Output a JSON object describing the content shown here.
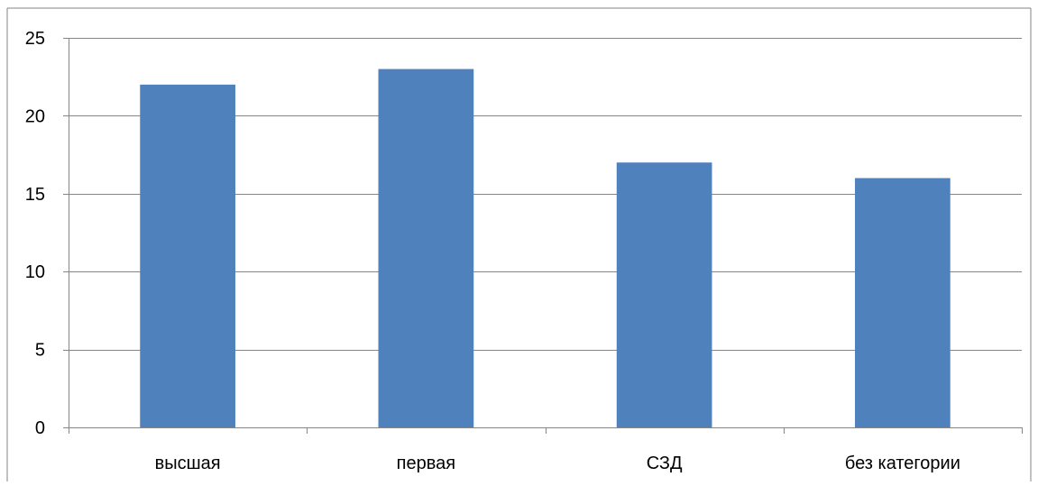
{
  "chart_data": {
    "type": "bar",
    "title": "",
    "xlabel": "",
    "ylabel": "",
    "categories": [
      "высшая",
      "первая",
      "СЗД",
      "без категории"
    ],
    "series": [
      {
        "values": [
          22,
          23,
          17,
          16
        ]
      }
    ],
    "ylim": [
      0,
      25
    ],
    "yticks": [
      0,
      5,
      10,
      15,
      20,
      25
    ],
    "ytick_labels": [
      "0",
      "5",
      "10",
      "15",
      "20",
      "25"
    ],
    "grid": true,
    "legend": "none",
    "colors": {
      "bar": "#4F81BD",
      "grid": "#868686",
      "axis": "#868686",
      "frame": "#868686"
    }
  }
}
